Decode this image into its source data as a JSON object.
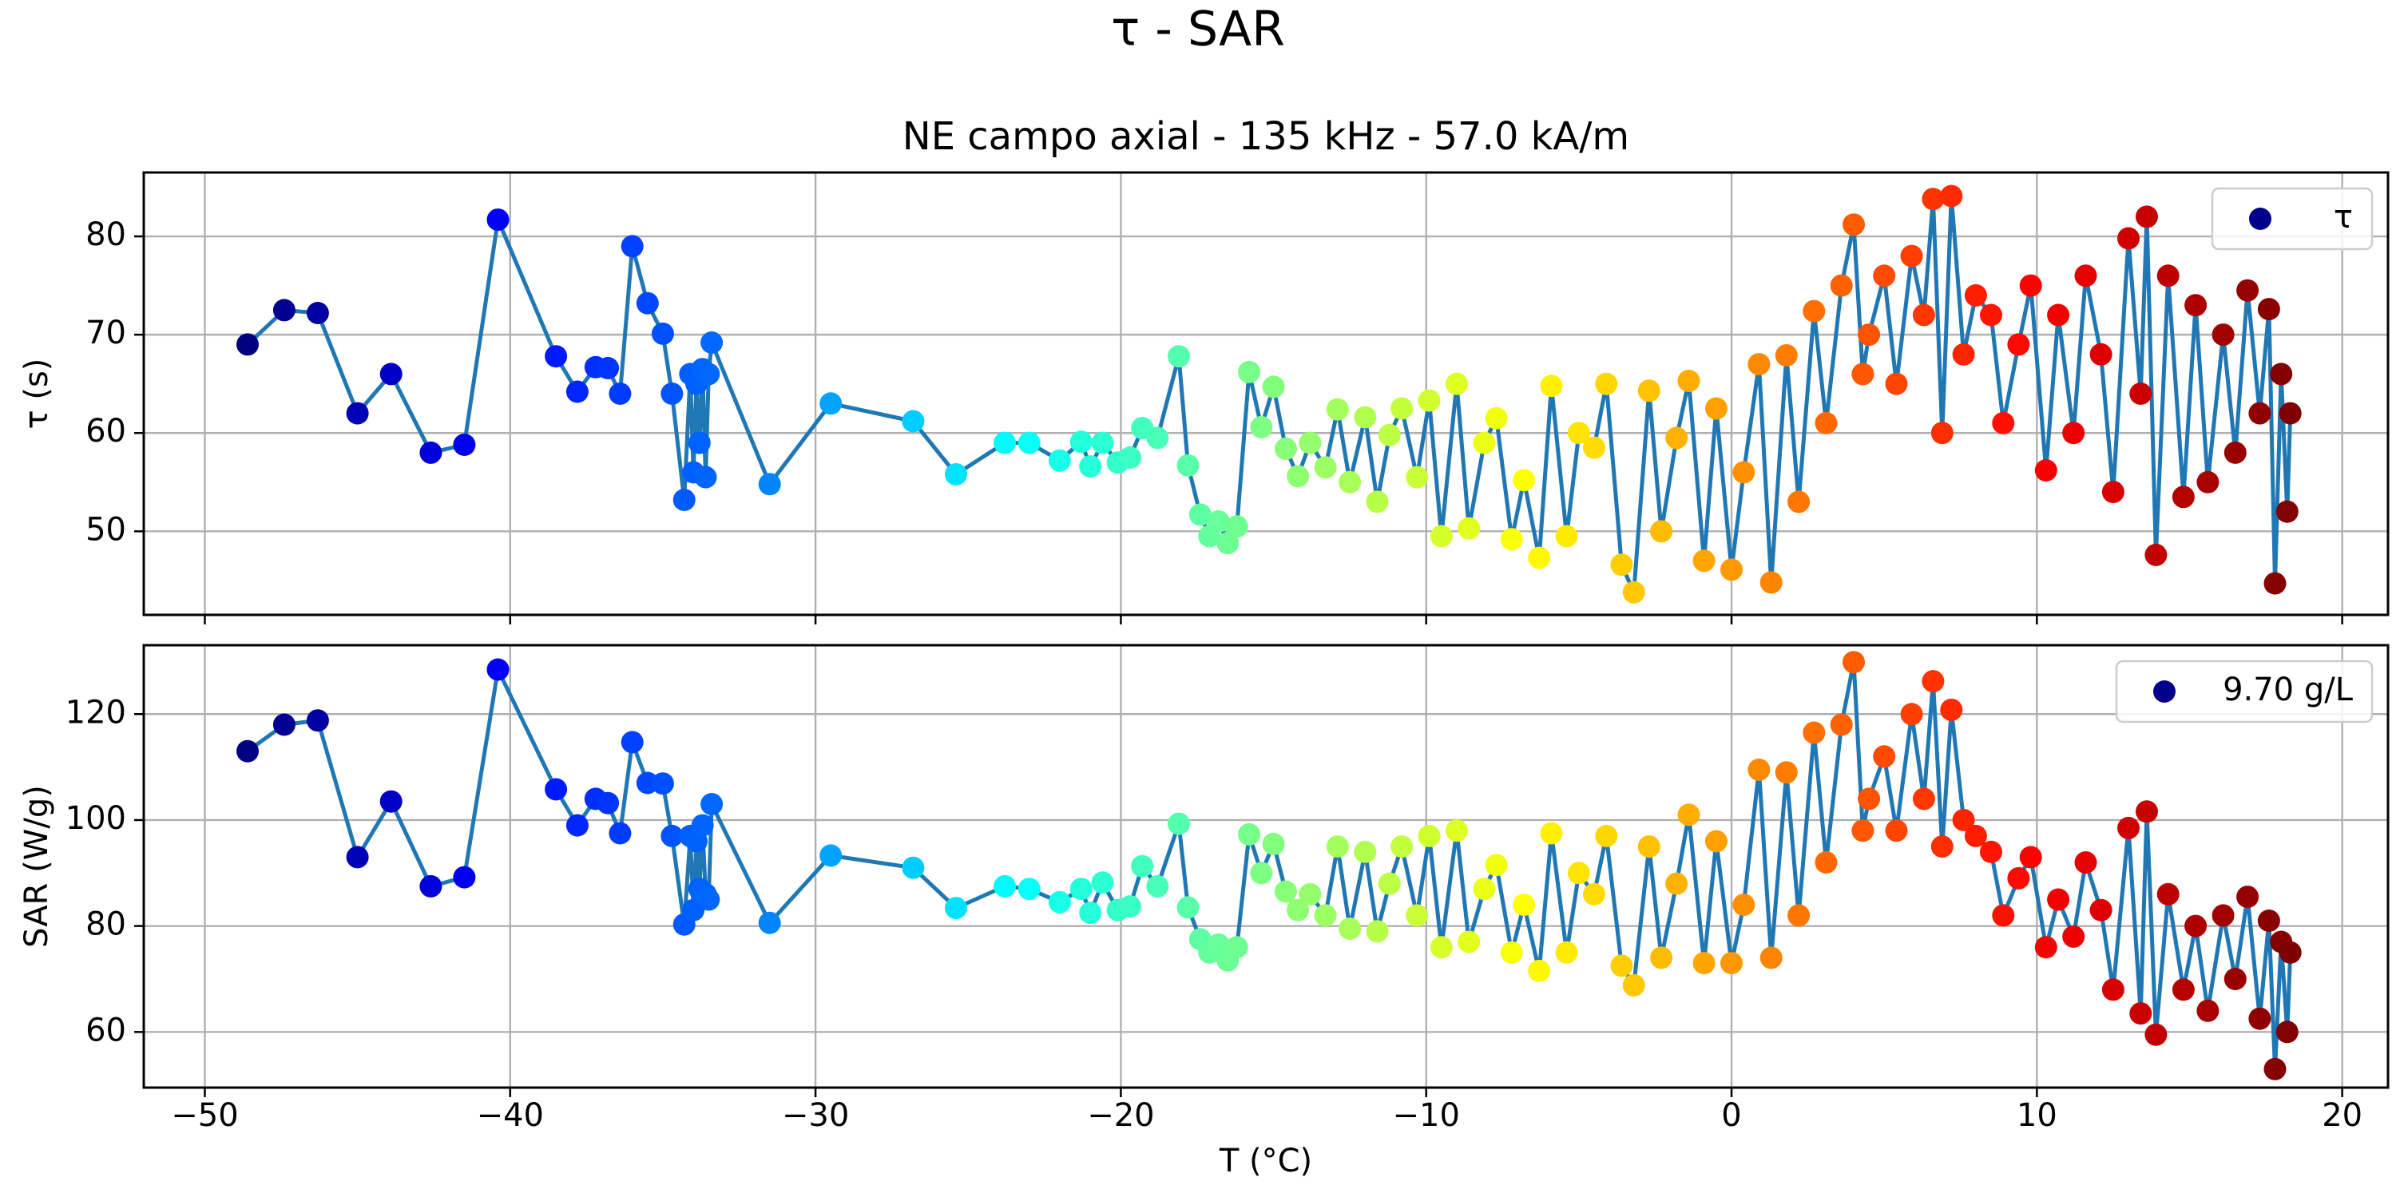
{
  "figure_title": "τ - SAR",
  "chart_data": [
    {
      "id": "tau",
      "type": "scatter",
      "title": "NE campo axial - 135 kHz - 57.0 kA/m",
      "xlabel": "",
      "ylabel": "τ (s)",
      "xlim": [
        -52,
        21.5
      ],
      "ylim": [
        41.5,
        86.5
      ],
      "xticks": [
        -50,
        -40,
        -30,
        -20,
        -10,
        0,
        10,
        20
      ],
      "xtick_labels_visible": false,
      "yticks": [
        50,
        60,
        70,
        80
      ],
      "grid": true,
      "legend": {
        "position": "top-right",
        "label": "τ",
        "marker_color": "#00008b"
      },
      "line_color": "#1f77b4",
      "colormap": "jet",
      "series": [
        {
          "x": [
            -48.6,
            -47.4,
            -46.3,
            -45.0,
            -43.9,
            -42.6,
            -41.5,
            -40.4,
            -38.5,
            -37.8,
            -37.2,
            -36.8,
            -36.4,
            -36.0,
            -35.5,
            -35.0,
            -34.7,
            -34.3,
            -34.1,
            -34.0,
            -33.9,
            -33.8,
            -33.7,
            -33.6,
            -33.5,
            -33.4,
            -31.5,
            -29.5,
            -26.8,
            -25.4,
            -23.8,
            -23.0,
            -22.0,
            -21.3,
            -21.0,
            -20.6,
            -20.1,
            -19.7,
            -19.3,
            -18.8,
            -18.1,
            -17.8,
            -17.4,
            -17.1,
            -16.8,
            -16.5,
            -16.2,
            -15.8,
            -15.4,
            -15.0,
            -14.6,
            -14.2,
            -13.8,
            -13.3,
            -12.9,
            -12.5,
            -12.0,
            -11.6,
            -11.2,
            -10.8,
            -10.3,
            -9.9,
            -9.5,
            -9.0,
            -8.6,
            -8.1,
            -7.7,
            -7.2,
            -6.8,
            -6.3,
            -5.9,
            -5.4,
            -5.0,
            -4.5,
            -4.1,
            -3.6,
            -3.2,
            -2.7,
            -2.3,
            -1.8,
            -1.4,
            -0.9,
            -0.5,
            0.0,
            0.4,
            0.9,
            1.3,
            1.8,
            2.2,
            2.7,
            3.1,
            3.6,
            4.0,
            4.3,
            4.5,
            5.0,
            5.4,
            5.9,
            6.3,
            6.6,
            6.9,
            7.2,
            7.6,
            8.0,
            8.5,
            8.9,
            9.4,
            9.8,
            10.3,
            10.7,
            11.2,
            11.6,
            12.1,
            12.5,
            13.0,
            13.4,
            13.6,
            13.9,
            14.3,
            14.8,
            15.2,
            15.6,
            16.1,
            16.5,
            16.9,
            17.3,
            17.6,
            17.8,
            18.0,
            18.2,
            18.3
          ],
          "y": [
            69.0,
            72.5,
            72.2,
            62.0,
            66.0,
            58.0,
            58.8,
            81.7,
            67.8,
            64.2,
            66.7,
            66.6,
            64.0,
            79.0,
            73.2,
            70.1,
            64.0,
            53.2,
            66.0,
            56.0,
            65.0,
            59.0,
            66.5,
            55.5,
            66.0,
            69.2,
            54.8,
            63.0,
            61.2,
            55.8,
            59.0,
            59.0,
            57.2,
            59.1,
            56.6,
            59.0,
            57.0,
            57.5,
            60.5,
            59.5,
            67.8,
            56.7,
            51.7,
            49.5,
            51.0,
            48.8,
            50.5,
            66.2,
            60.6,
            64.7,
            58.4,
            55.6,
            59.0,
            56.5,
            62.4,
            55.0,
            61.6,
            53.0,
            59.8,
            62.5,
            55.5,
            63.3,
            49.5,
            65.0,
            50.3,
            59.0,
            61.5,
            49.2,
            55.2,
            47.3,
            64.8,
            49.5,
            60.0,
            58.5,
            65.0,
            46.6,
            43.8,
            64.3,
            50.0,
            59.5,
            65.3,
            47.0,
            62.5,
            46.1,
            56.0,
            67.0,
            44.8,
            67.9,
            53.0,
            72.4,
            61.0,
            75.0,
            81.2,
            66.0,
            70.0,
            76.0,
            65.0,
            78.0,
            72.0,
            83.8,
            60.0,
            84.1,
            68.0,
            74.0,
            72.0,
            61.0,
            69.0,
            75.0,
            56.2,
            72.0,
            60.0,
            76.0,
            68.0,
            54.0,
            79.8,
            64.0,
            82.0,
            47.6,
            76.0,
            53.5,
            73.0,
            55.0,
            70.0,
            58.0,
            74.5,
            62.0,
            72.6,
            44.7,
            66.0,
            52.0,
            62.0
          ]
        }
      ]
    },
    {
      "id": "sar",
      "type": "scatter",
      "title": "",
      "xlabel": "T (°C)",
      "ylabel": "SAR (W/g)",
      "xlim": [
        -52,
        21.5
      ],
      "ylim": [
        49.5,
        133.0
      ],
      "xticks": [
        -50,
        -40,
        -30,
        -20,
        -10,
        0,
        10,
        20
      ],
      "xtick_labels": [
        "−50",
        "−40",
        "−30",
        "−20",
        "−10",
        "0",
        "10",
        "20"
      ],
      "yticks": [
        60,
        80,
        100,
        120
      ],
      "grid": true,
      "legend": {
        "position": "top-right",
        "label": "9.70 g/L",
        "marker_color": "#00008b"
      },
      "line_color": "#1f77b4",
      "colormap": "jet",
      "series": [
        {
          "x": [
            -48.6,
            -47.4,
            -46.3,
            -45.0,
            -43.9,
            -42.6,
            -41.5,
            -40.4,
            -38.5,
            -37.8,
            -37.2,
            -36.8,
            -36.4,
            -36.0,
            -35.5,
            -35.0,
            -34.7,
            -34.3,
            -34.1,
            -34.0,
            -33.9,
            -33.8,
            -33.7,
            -33.6,
            -33.5,
            -33.4,
            -31.5,
            -29.5,
            -26.8,
            -25.4,
            -23.8,
            -23.0,
            -22.0,
            -21.3,
            -21.0,
            -20.6,
            -20.1,
            -19.7,
            -19.3,
            -18.8,
            -18.1,
            -17.8,
            -17.4,
            -17.1,
            -16.8,
            -16.5,
            -16.2,
            -15.8,
            -15.4,
            -15.0,
            -14.6,
            -14.2,
            -13.8,
            -13.3,
            -12.9,
            -12.5,
            -12.0,
            -11.6,
            -11.2,
            -10.8,
            -10.3,
            -9.9,
            -9.5,
            -9.0,
            -8.6,
            -8.1,
            -7.7,
            -7.2,
            -6.8,
            -6.3,
            -5.9,
            -5.4,
            -5.0,
            -4.5,
            -4.1,
            -3.6,
            -3.2,
            -2.7,
            -2.3,
            -1.8,
            -1.4,
            -0.9,
            -0.5,
            0.0,
            0.4,
            0.9,
            1.3,
            1.8,
            2.2,
            2.7,
            3.1,
            3.6,
            4.0,
            4.3,
            4.5,
            5.0,
            5.4,
            5.9,
            6.3,
            6.6,
            6.9,
            7.2,
            7.6,
            8.0,
            8.5,
            8.9,
            9.4,
            9.8,
            10.3,
            10.7,
            11.2,
            11.6,
            12.1,
            12.5,
            13.0,
            13.4,
            13.6,
            13.9,
            14.3,
            14.8,
            15.2,
            15.6,
            16.1,
            16.5,
            16.9,
            17.3,
            17.6,
            17.8,
            18.0,
            18.2,
            18.3
          ],
          "y": [
            113.0,
            118.0,
            118.8,
            93.0,
            103.5,
            87.5,
            89.2,
            128.4,
            105.8,
            99.0,
            104.0,
            103.2,
            97.5,
            114.7,
            107.0,
            106.9,
            97.0,
            80.3,
            97.0,
            83.0,
            96.0,
            87.0,
            99.0,
            86.0,
            85.0,
            103.0,
            80.6,
            93.3,
            91.0,
            83.4,
            87.5,
            87.0,
            84.5,
            87.0,
            82.5,
            88.2,
            83.0,
            83.7,
            91.3,
            87.5,
            99.3,
            83.5,
            77.5,
            75.0,
            76.5,
            73.5,
            76.0,
            97.3,
            90.0,
            95.5,
            86.5,
            83.0,
            86.0,
            82.0,
            95.0,
            79.5,
            94.0,
            79.0,
            88.0,
            95.0,
            82.0,
            97.0,
            76.0,
            98.0,
            77.0,
            87.0,
            91.5,
            75.0,
            84.0,
            71.5,
            97.5,
            75.0,
            90.0,
            86.0,
            97.0,
            72.5,
            68.8,
            95.0,
            74.0,
            88.0,
            101.0,
            73.0,
            96.0,
            73.0,
            84.0,
            109.5,
            74.0,
            109.0,
            82.0,
            116.5,
            92.0,
            118.0,
            129.8,
            98.0,
            104.0,
            112.0,
            98.0,
            120.0,
            104.0,
            126.2,
            95.0,
            120.8,
            100.0,
            97.0,
            94.0,
            82.0,
            89.0,
            93.0,
            76.0,
            85.0,
            78.0,
            92.0,
            83.0,
            68.0,
            98.5,
            63.5,
            101.6,
            59.5,
            86.0,
            68.0,
            80.0,
            64.0,
            82.0,
            70.0,
            85.5,
            62.5,
            81.0,
            53.0,
            77.0,
            60.0,
            75.0
          ]
        }
      ]
    }
  ]
}
